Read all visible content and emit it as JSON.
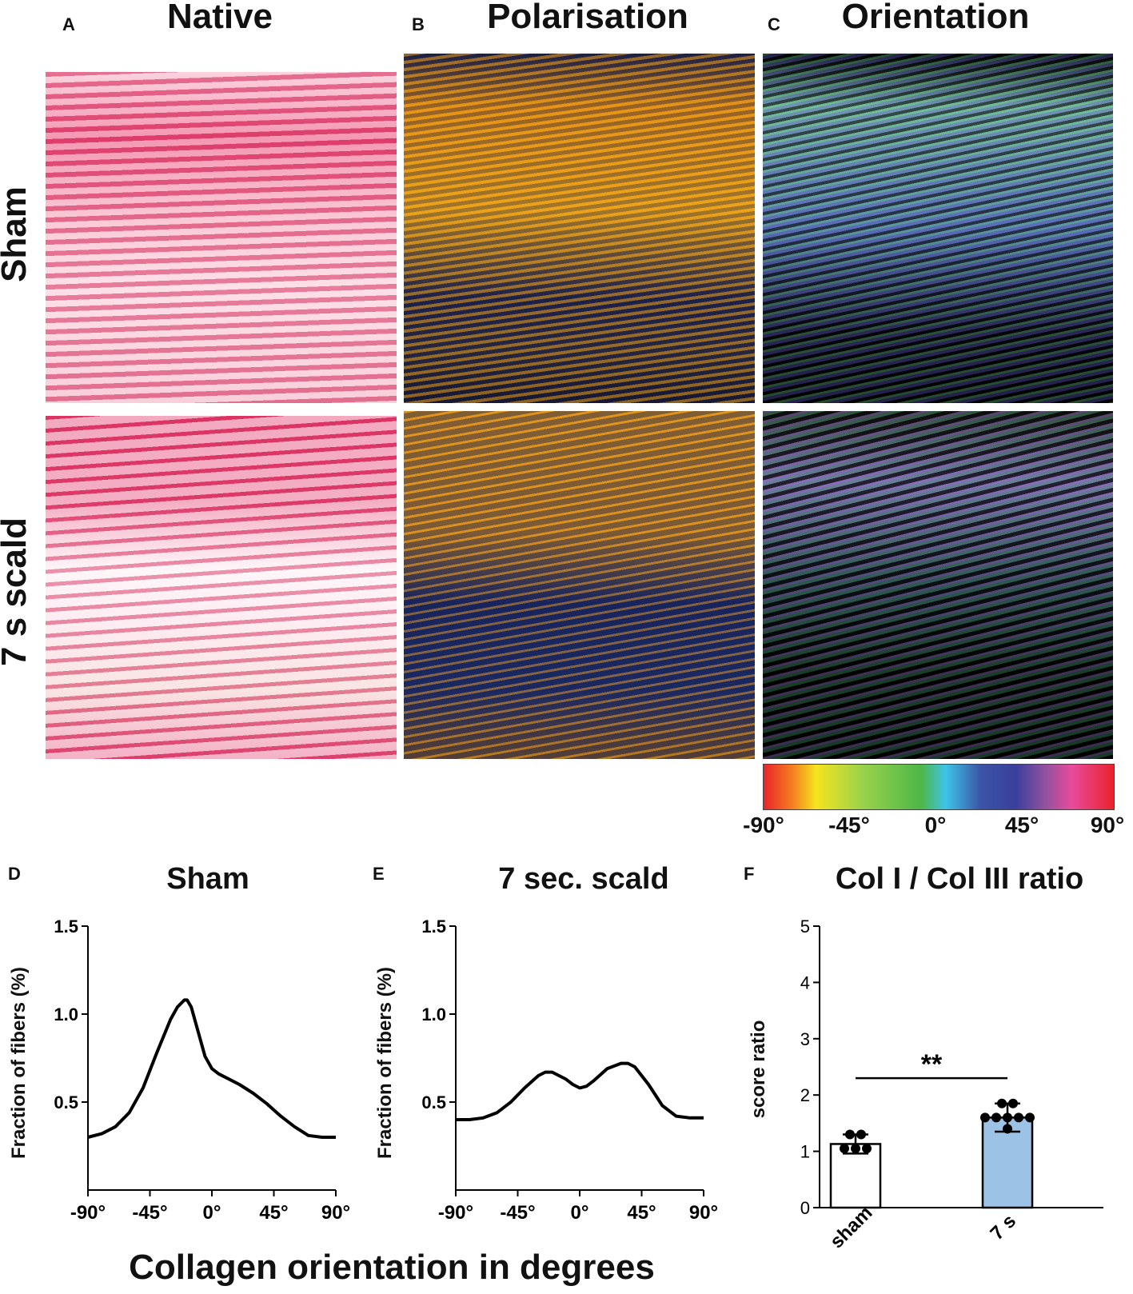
{
  "columns": [
    {
      "letter": "A",
      "title": "Native"
    },
    {
      "letter": "B",
      "title": "Polarisation"
    },
    {
      "letter": "C",
      "title": "Orientation"
    }
  ],
  "rows": [
    "Sham",
    "7 s scald"
  ],
  "colorbar": {
    "ticks": [
      "-90°",
      "-45°",
      "0°",
      "45°",
      "90°"
    ]
  },
  "panels": {
    "d": {
      "letter": "D",
      "title": "Sham"
    },
    "e": {
      "letter": "E",
      "title": "7 sec. scald"
    },
    "f": {
      "letter": "F",
      "title": "Col I / Col III ratio"
    }
  },
  "shared_xlabel": "Collagen orientation in degrees",
  "chart_data": [
    {
      "type": "line",
      "title": "Sham",
      "ylabel": "Fraction of fibers (%)",
      "xlabel": "Collagen orientation in degrees",
      "xlim": [
        -90,
        90
      ],
      "ylim": [
        0,
        1.5
      ],
      "xticks": [
        "-90°",
        "-45°",
        "0°",
        "45°",
        "90°"
      ],
      "yticks": [
        "0.5",
        "1.0",
        "1.5"
      ],
      "x": [
        -90,
        -80,
        -70,
        -60,
        -50,
        -40,
        -30,
        -25,
        -20,
        -18,
        -15,
        -10,
        -5,
        0,
        5,
        10,
        20,
        30,
        40,
        50,
        60,
        70,
        80,
        90
      ],
      "y": [
        0.3,
        0.32,
        0.36,
        0.44,
        0.58,
        0.78,
        0.97,
        1.04,
        1.08,
        1.08,
        1.04,
        0.9,
        0.76,
        0.69,
        0.66,
        0.64,
        0.6,
        0.55,
        0.49,
        0.42,
        0.36,
        0.31,
        0.3,
        0.3
      ]
    },
    {
      "type": "line",
      "title": "7 sec. scald",
      "ylabel": "Fraction of fibers (%)",
      "xlabel": "Collagen orientation in degrees",
      "xlim": [
        -90,
        90
      ],
      "ylim": [
        0,
        1.5
      ],
      "xticks": [
        "-90°",
        "-45°",
        "0°",
        "45°",
        "90°"
      ],
      "yticks": [
        "0.5",
        "1.0",
        "1.5"
      ],
      "x": [
        -90,
        -80,
        -70,
        -60,
        -50,
        -40,
        -30,
        -25,
        -20,
        -10,
        -5,
        0,
        5,
        10,
        20,
        30,
        35,
        40,
        50,
        60,
        70,
        80,
        90
      ],
      "y": [
        0.4,
        0.4,
        0.41,
        0.44,
        0.5,
        0.58,
        0.65,
        0.67,
        0.67,
        0.63,
        0.6,
        0.58,
        0.59,
        0.62,
        0.69,
        0.72,
        0.72,
        0.7,
        0.6,
        0.48,
        0.42,
        0.41,
        0.41
      ]
    },
    {
      "type": "bar",
      "title": "Col I / Col III ratio",
      "ylabel": "score ratio",
      "categories": [
        "sham",
        "7 s"
      ],
      "values": [
        1.13,
        1.6
      ],
      "errors": [
        0.17,
        0.25
      ],
      "colors": [
        "#ffffff",
        "#9cc2e5"
      ],
      "points": [
        [
          1.3,
          1.3,
          1.05,
          1.05,
          1.05
        ],
        [
          1.85,
          1.85,
          1.6,
          1.6,
          1.6,
          1.6,
          1.6,
          1.4
        ]
      ],
      "ylim": [
        0,
        5
      ],
      "yticks": [
        "0",
        "1",
        "2",
        "3",
        "4",
        "5"
      ],
      "significance": "**"
    }
  ]
}
